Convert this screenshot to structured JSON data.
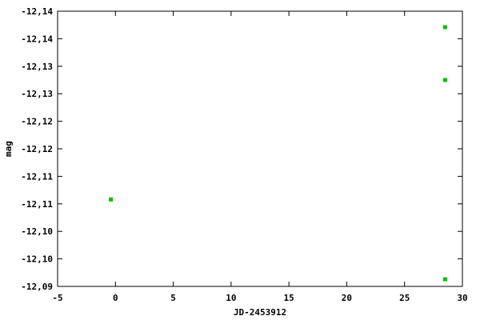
{
  "chart_data": {
    "type": "scatter",
    "title": "",
    "xlabel": "JD-2453912",
    "ylabel": "mag",
    "xlim": [
      -5,
      30
    ],
    "ylim": [
      -12.14,
      -12.09
    ],
    "y_reversed": true,
    "grid": false,
    "x_ticks": [
      -5,
      0,
      5,
      10,
      15,
      20,
      25,
      30
    ],
    "x_tick_labels": [
      "-5",
      "0",
      "5",
      "10",
      "15",
      "20",
      "25",
      "30"
    ],
    "y_ticks": [
      -12.14,
      -12.135,
      -12.13,
      -12.125,
      -12.12,
      -12.115,
      -12.11,
      -12.105,
      -12.1,
      -12.095,
      -12.09
    ],
    "y_tick_labels": [
      "-12,14",
      "-12,14",
      "-12,13",
      "-12,13",
      "-12,12",
      "-12,12",
      "-12,11",
      "-12,11",
      "-12,10",
      "-12,10",
      "-12,09"
    ],
    "points": [
      {
        "x": -0.4,
        "y": -12.1058
      },
      {
        "x": 28.5,
        "y": -12.1371
      },
      {
        "x": 28.5,
        "y": -12.1275
      },
      {
        "x": 28.5,
        "y": -12.0913
      }
    ],
    "marker_color": "#00c000"
  }
}
